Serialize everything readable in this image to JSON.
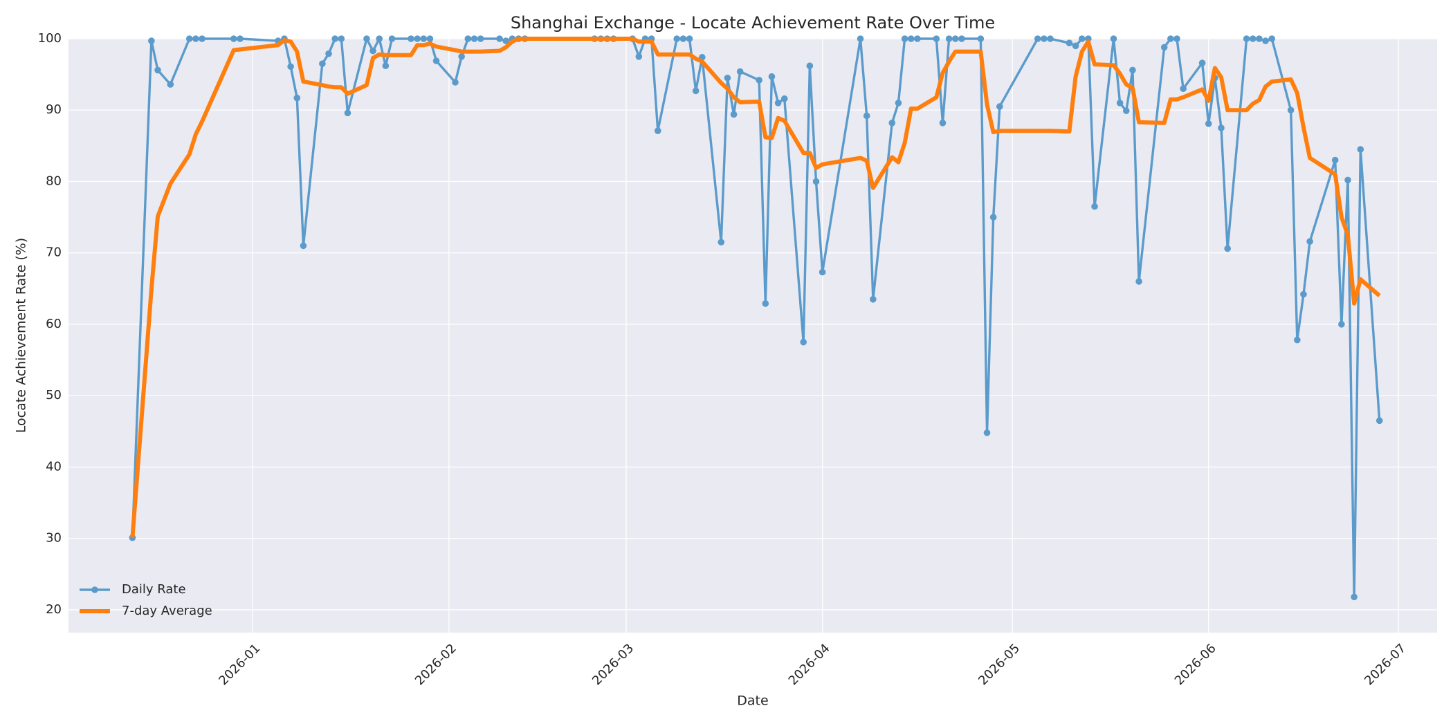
{
  "chart_data": {
    "type": "line",
    "title": "Shanghai Exchange - Locate Achievement Rate Over Time",
    "xlabel": "Date",
    "ylabel": "Locate Achievement Rate (%)",
    "x": [
      -19,
      -16,
      -15,
      -13,
      -10,
      -9,
      -8,
      -3,
      -2,
      4,
      5,
      6,
      7,
      8,
      11,
      12,
      13,
      14,
      15,
      18,
      19,
      20,
      21,
      22,
      25,
      26,
      27,
      28,
      29,
      32,
      33,
      34,
      35,
      36,
      39,
      40,
      41,
      42,
      43,
      54,
      55,
      56,
      57,
      60,
      61,
      62,
      63,
      64,
      67,
      68,
      69,
      70,
      71,
      74,
      75,
      76,
      77,
      80,
      81,
      82,
      83,
      84,
      87,
      88,
      89,
      90,
      96,
      97,
      98,
      101,
      102,
      103,
      104,
      105,
      108,
      109,
      110,
      111,
      112,
      115,
      116,
      117,
      118,
      124,
      125,
      126,
      129,
      130,
      131,
      132,
      133,
      136,
      137,
      138,
      139,
      140,
      144,
      145,
      146,
      147,
      150,
      151,
      152,
      153,
      154,
      157,
      158,
      159,
      160,
      161,
      164,
      165,
      166,
      167,
      171,
      172,
      173,
      174,
      175,
      178
    ],
    "xlim": [
      -29.1,
      187.1
    ],
    "xticks": [
      {
        "value": 0,
        "label": "2026-01"
      },
      {
        "value": 31,
        "label": "2026-02"
      },
      {
        "value": 59,
        "label": "2026-03"
      },
      {
        "value": 90,
        "label": "2026-04"
      },
      {
        "value": 120,
        "label": "2026-05"
      },
      {
        "value": 151,
        "label": "2026-06"
      },
      {
        "value": 181,
        "label": "2026-07"
      }
    ],
    "ylim": [
      16.8,
      100
    ],
    "yticks": [
      20,
      30,
      40,
      50,
      60,
      70,
      80,
      90,
      100
    ],
    "grid": true,
    "legend": "lower left",
    "series": [
      {
        "name": "Daily Rate",
        "color": "#5b9bcb",
        "marker": true,
        "values": [
          30.1,
          99.7,
          95.6,
          93.6,
          100,
          100,
          100,
          100,
          100,
          99.7,
          100,
          96.1,
          91.7,
          71.0,
          96.5,
          97.9,
          100,
          100,
          89.6,
          100,
          98.3,
          100,
          96.2,
          100,
          100,
          100,
          100,
          100,
          96.9,
          93.9,
          97.5,
          100,
          100,
          100,
          100,
          99.7,
          100,
          100,
          100,
          100,
          100,
          100,
          100,
          100,
          97.5,
          100,
          100,
          87.1,
          100,
          100,
          100,
          92.7,
          97.4,
          71.5,
          94.5,
          89.4,
          95.4,
          94.2,
          62.9,
          94.7,
          91.0,
          91.6,
          57.5,
          96.2,
          80.0,
          67.3,
          100,
          89.2,
          63.5,
          88.2,
          91.0,
          100,
          100,
          100,
          100,
          88.2,
          100,
          100,
          100,
          100,
          44.8,
          75.0,
          90.5,
          100,
          100,
          100,
          99.4,
          99.0,
          100,
          100,
          76.5,
          100,
          91.0,
          89.9,
          95.6,
          66.0,
          98.8,
          100,
          100,
          93.0,
          96.6,
          88.1,
          94.5,
          87.5,
          70.6,
          100,
          100,
          100,
          99.7,
          100,
          90.0,
          57.8,
          64.2,
          71.6,
          83.0,
          60.0,
          80.2,
          21.8,
          84.5,
          46.5
        ]
      },
      {
        "name": "7-day Average",
        "color": "#ff7f0e",
        "marker": false,
        "values": [
          30.1,
          64.9,
          75.1,
          79.7,
          83.8,
          86.6,
          88.4,
          98.4,
          98.5,
          99.1,
          99.8,
          99.6,
          98.2,
          94.0,
          93.5,
          93.3,
          93.2,
          93.2,
          92.3,
          93.5,
          97.3,
          97.8,
          97.7,
          97.7,
          97.7,
          99.1,
          99.1,
          99.3,
          98.9,
          98.4,
          98.2,
          98.2,
          98.2,
          98.2,
          98.3,
          98.8,
          99.6,
          100,
          100,
          100,
          100,
          100,
          100,
          100,
          99.6,
          99.6,
          99.6,
          97.8,
          97.8,
          97.8,
          97.8,
          97.2,
          96.8,
          93.8,
          93.0,
          91.8,
          91.1,
          91.2,
          86.2,
          86.1,
          88.9,
          88.5,
          84.0,
          84.0,
          81.9,
          82.4,
          83.3,
          82.9,
          79.1,
          83.4,
          82.7,
          85.4,
          90.2,
          90.2,
          91.8,
          95.2,
          96.8,
          98.2,
          98.2,
          98.2,
          90.8,
          86.9,
          87.1,
          87.1,
          87.1,
          87.1,
          87.0,
          94.7,
          98.2,
          99.6,
          96.4,
          96.3,
          95.1,
          93.6,
          93.1,
          88.3,
          88.2,
          91.5,
          91.5,
          91.8,
          92.9,
          91.3,
          95.9,
          94.6,
          90.0,
          90.0,
          90.9,
          91.4,
          93.3,
          94.0,
          94.3,
          92.4,
          87.6,
          83.3,
          81.0,
          75.0,
          72.5,
          62.9,
          66.3,
          64.0
        ]
      }
    ]
  }
}
